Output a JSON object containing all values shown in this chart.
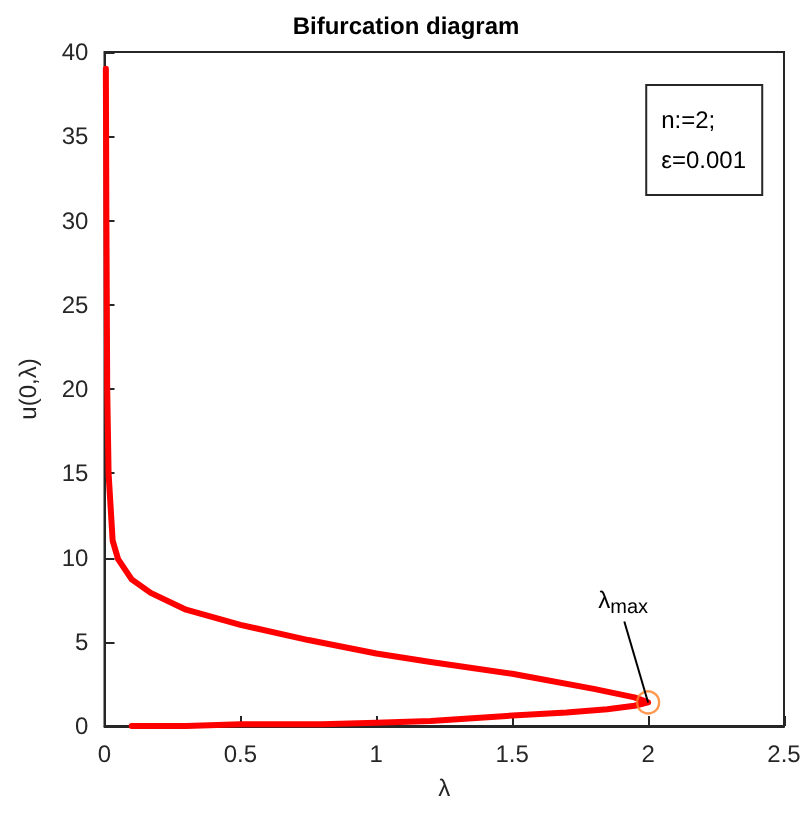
{
  "chart_data": {
    "type": "line",
    "title": "Bifurcation diagram",
    "xlabel": "λ",
    "ylabel": "u(0,λ)",
    "xlim": [
      0,
      2.5
    ],
    "xticks": [
      0,
      0.5,
      1,
      1.5,
      2,
      2.5
    ],
    "ylim": [
      0,
      40
    ],
    "yticks": [
      0,
      5,
      10,
      15,
      20,
      25,
      30,
      35,
      40
    ],
    "grid": false,
    "marker": "none",
    "line_style": "solid",
    "series": [
      {
        "color": "#ff0000",
        "x": [
          0.1,
          0.3,
          0.5,
          0.8,
          1.0,
          1.2,
          1.48,
          1.7,
          1.85,
          1.95,
          2.0,
          1.95,
          1.8,
          1.5,
          1.2,
          1.0,
          0.75,
          0.5,
          0.3,
          0.17,
          0.1,
          0.05,
          0.03,
          0.015,
          0.01,
          0.007,
          0.005
        ],
        "values": [
          0,
          0,
          0.1,
          0.1,
          0.2,
          0.3,
          0.6,
          0.8,
          1.0,
          1.2,
          1.4,
          1.7,
          2.2,
          3.1,
          3.8,
          4.3,
          5.1,
          6.0,
          6.9,
          7.9,
          8.7,
          9.9,
          11,
          15,
          20,
          30,
          39
        ]
      },
      {
        "type": "scatter",
        "color": "#ff7f27",
        "marker": "circle",
        "x": [
          2.0
        ],
        "values": [
          1.4
        ]
      }
    ],
    "annotations": [
      {
        "text": "λ$_{max}$",
        "x": 2.0,
        "y": 1.4
      },
      "n:=2;\nε=0.001"
    ]
  }
}
